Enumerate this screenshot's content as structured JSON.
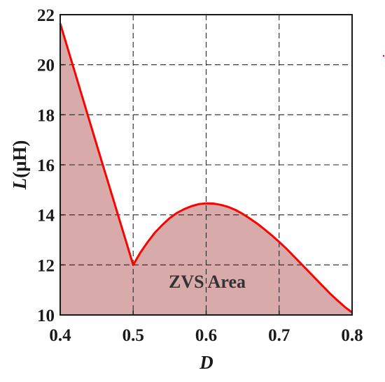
{
  "chart_data": {
    "type": "area",
    "xlabel": "D",
    "ylabel_var": "L",
    "ylabel_unit": "(μH)",
    "xlim": [
      0.4,
      0.8
    ],
    "ylim": [
      10,
      22
    ],
    "xticks": [
      0.4,
      0.5,
      0.6,
      0.7,
      0.8
    ],
    "xtick_labels": [
      "0.4",
      "0.5",
      "0.6",
      "0.7",
      "0.8"
    ],
    "yticks": [
      10,
      12,
      14,
      16,
      18,
      20,
      22
    ],
    "ytick_labels": [
      "10",
      "12",
      "14",
      "16",
      "18",
      "20",
      "22"
    ],
    "grid": true,
    "annotation": "ZVS Area",
    "series": [
      {
        "color": "#ff0000",
        "fill": "#d9aaaa",
        "x": [
          0.4,
          0.45,
          0.5,
          0.51,
          0.52,
          0.53,
          0.54,
          0.55,
          0.56,
          0.57,
          0.58,
          0.59,
          0.6,
          0.61,
          0.62,
          0.63,
          0.64,
          0.65,
          0.66,
          0.67,
          0.68,
          0.69,
          0.7,
          0.71,
          0.72,
          0.73,
          0.74,
          0.75,
          0.76,
          0.77,
          0.78,
          0.79,
          0.8
        ],
        "y": [
          21.65,
          16.8,
          12.0,
          12.5,
          12.92,
          13.3,
          13.6,
          13.87,
          14.08,
          14.23,
          14.35,
          14.43,
          14.46,
          14.45,
          14.4,
          14.32,
          14.2,
          14.04,
          13.85,
          13.65,
          13.42,
          13.18,
          12.92,
          12.65,
          12.35,
          12.05,
          11.75,
          11.45,
          11.15,
          10.85,
          10.58,
          10.32,
          10.1
        ]
      }
    ]
  }
}
